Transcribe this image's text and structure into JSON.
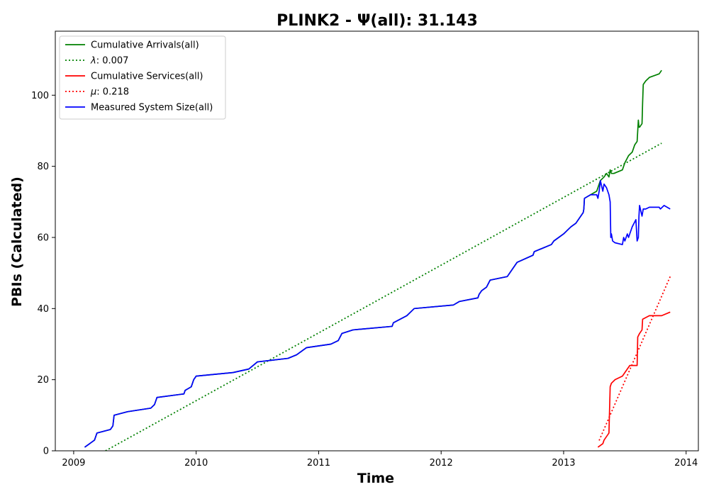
{
  "chart_data": {
    "type": "line",
    "title": "PLINK2 -  Ψ(all): 31.143",
    "xlabel": "Time",
    "ylabel": "PBIs (Calculated)",
    "xlim": [
      2008.85,
      2014.1
    ],
    "ylim": [
      0,
      118
    ],
    "x_ticks": [
      2009,
      2010,
      2011,
      2012,
      2013,
      2014
    ],
    "x_tick_labels": [
      "2009",
      "2010",
      "2011",
      "2012",
      "2013",
      "2014"
    ],
    "y_ticks": [
      0,
      20,
      40,
      60,
      80,
      100
    ],
    "y_tick_labels": [
      "0",
      "20",
      "40",
      "60",
      "80",
      "100"
    ],
    "grid": false,
    "legend_position": "top-left",
    "legend_math": {
      "lambda": "λ",
      "mu": "μ"
    },
    "series": [
      {
        "name": "Cumulative Arrivals(all)",
        "color": "#008000",
        "style": "solid",
        "x": [
          2009.09,
          2009.17,
          2009.19,
          2009.3,
          2009.32,
          2009.33,
          2009.44,
          2009.63,
          2009.66,
          2009.67,
          2009.68,
          2009.9,
          2009.91,
          2009.96,
          2009.97,
          2009.98,
          2010.0,
          2010.3,
          2010.43,
          2010.5,
          2010.75,
          2010.82,
          2010.9,
          2011.1,
          2011.16,
          2011.19,
          2011.28,
          2011.6,
          2011.61,
          2011.72,
          2011.78,
          2012.1,
          2012.15,
          2012.3,
          2012.31,
          2012.33,
          2012.37,
          2012.4,
          2012.54,
          2012.56,
          2012.62,
          2012.75,
          2012.76,
          2012.83,
          2012.9,
          2012.92,
          2013.0,
          2013.03,
          2013.06,
          2013.1,
          2013.16,
          2013.165,
          2013.17,
          2013.22,
          2013.27,
          2013.28,
          2013.3,
          2013.33,
          2013.35,
          2013.37,
          2013.38,
          2013.39,
          2013.41,
          2013.48,
          2013.5,
          2013.53,
          2013.56,
          2013.58,
          2013.6,
          2013.61,
          2013.615,
          2013.62,
          2013.64,
          2013.645,
          2013.65,
          2013.67,
          2013.7,
          2013.78,
          2013.8
        ],
        "y": [
          1,
          3,
          5,
          6,
          7,
          10,
          11,
          12,
          13,
          14,
          15,
          16,
          17,
          18,
          19,
          20,
          21,
          22,
          23,
          25,
          26,
          27,
          29,
          30,
          31,
          33,
          34,
          35,
          36,
          38,
          40,
          41,
          42,
          43,
          44,
          45,
          46,
          48,
          49,
          50,
          53,
          55,
          56,
          57,
          58,
          59,
          61,
          62,
          63,
          64,
          67,
          68,
          71,
          72,
          73,
          74,
          76,
          77,
          78,
          77,
          79,
          78,
          78,
          79,
          81,
          83,
          84,
          86,
          87,
          93,
          91,
          91,
          92,
          98,
          103,
          104,
          105,
          106,
          107
        ]
      },
      {
        "name": "λ: 0.007",
        "color": "#008000",
        "style": "dotted",
        "x": [
          2009.26,
          2013.8
        ],
        "y": [
          0,
          86.5
        ]
      },
      {
        "name": "Cumulative Services(all)",
        "color": "#ff0000",
        "style": "solid",
        "x": [
          2013.28,
          2013.32,
          2013.33,
          2013.37,
          2013.38,
          2013.39,
          2013.42,
          2013.48,
          2013.5,
          2013.52,
          2013.54,
          2013.6,
          2013.605,
          2013.62,
          2013.64,
          2013.645,
          2013.7,
          2013.8,
          2013.87
        ],
        "y": [
          1,
          2,
          3,
          5,
          18,
          19,
          20,
          21,
          22,
          23,
          24,
          24,
          32,
          33,
          34,
          37,
          38,
          38,
          39
        ]
      },
      {
        "name": "μ: 0.218",
        "color": "#ff0000",
        "style": "dotted",
        "x": [
          2013.29,
          2013.87
        ],
        "y": [
          2.9,
          49
        ]
      },
      {
        "name": "Measured System Size(all)",
        "color": "#0000ff",
        "style": "solid",
        "x": [
          2009.09,
          2009.17,
          2009.19,
          2009.3,
          2009.32,
          2009.33,
          2009.44,
          2009.63,
          2009.66,
          2009.67,
          2009.68,
          2009.9,
          2009.91,
          2009.96,
          2009.97,
          2009.98,
          2010.0,
          2010.3,
          2010.43,
          2010.5,
          2010.75,
          2010.82,
          2010.9,
          2011.1,
          2011.16,
          2011.19,
          2011.28,
          2011.6,
          2011.61,
          2011.72,
          2011.78,
          2012.1,
          2012.15,
          2012.3,
          2012.31,
          2012.33,
          2012.37,
          2012.4,
          2012.54,
          2012.56,
          2012.62,
          2012.75,
          2012.76,
          2012.83,
          2012.9,
          2012.92,
          2013.0,
          2013.03,
          2013.06,
          2013.1,
          2013.16,
          2013.165,
          2013.17,
          2013.22,
          2013.27,
          2013.28,
          2013.29,
          2013.3,
          2013.32,
          2013.33,
          2013.35,
          2013.37,
          2013.38,
          2013.385,
          2013.39,
          2013.4,
          2013.42,
          2013.48,
          2013.49,
          2013.5,
          2013.52,
          2013.53,
          2013.56,
          2013.59,
          2013.6,
          2013.61,
          2013.615,
          2013.62,
          2013.64,
          2013.645,
          2013.65,
          2013.67,
          2013.7,
          2013.78,
          2013.79,
          2013.82,
          2013.87
        ],
        "y": [
          1,
          3,
          5,
          6,
          7,
          10,
          11,
          12,
          13,
          14,
          15,
          16,
          17,
          18,
          19,
          20,
          21,
          22,
          23,
          25,
          26,
          27,
          29,
          30,
          31,
          33,
          34,
          35,
          36,
          38,
          40,
          41,
          42,
          43,
          44,
          45,
          46,
          48,
          49,
          50,
          53,
          55,
          56,
          57,
          58,
          59,
          61,
          62,
          63,
          64,
          67,
          68,
          71,
          72,
          72,
          71,
          73,
          76,
          73,
          75,
          74,
          72,
          70,
          60,
          61,
          59,
          58.5,
          58,
          60,
          59,
          61,
          60,
          63,
          65,
          59,
          60,
          66,
          69,
          66,
          67,
          68,
          68,
          68.5,
          68.5,
          68,
          69,
          68
        ]
      }
    ]
  }
}
